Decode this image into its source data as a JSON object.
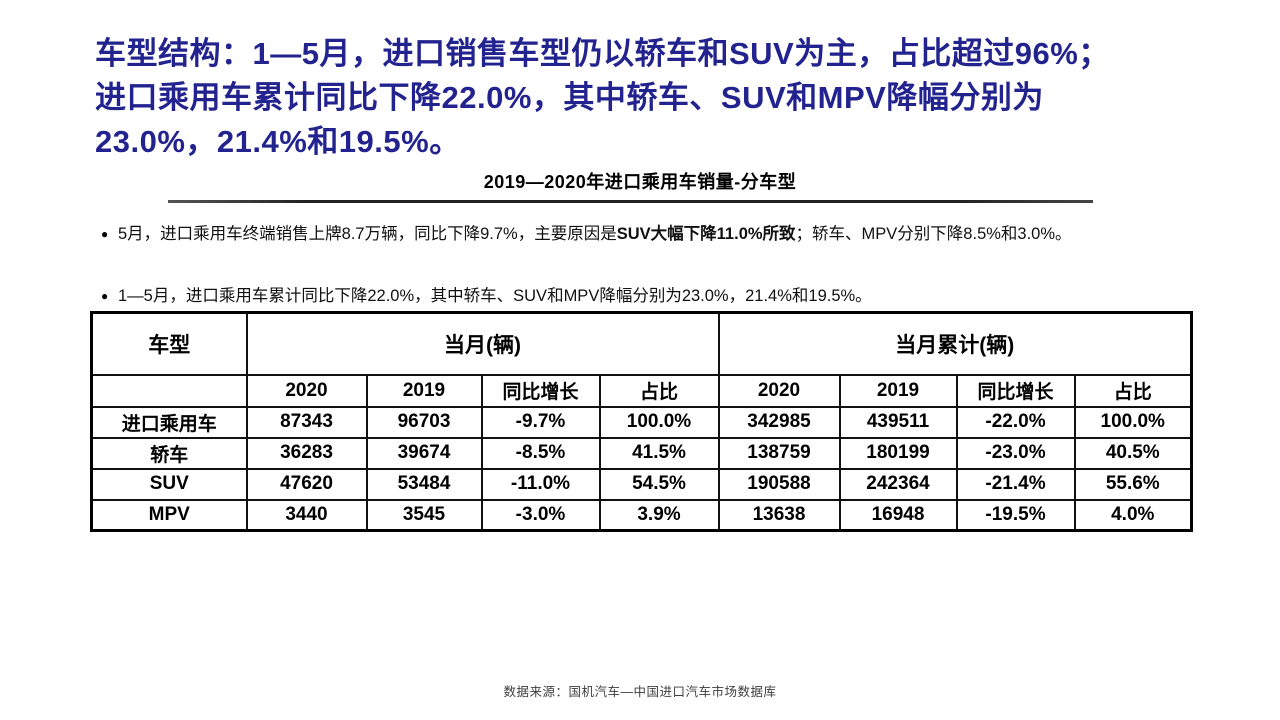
{
  "slide": {
    "title_lines": [
      "车型结构：1—5月，进口销售车型仍以轿车和SUV为主，占比超过96%；",
      "进口乘用车累计同比下降22.0%，其中轿车、SUV和MPV降幅分别为",
      "23.0%，21.4%和19.5%。"
    ],
    "section_title": "2019—2020年进口乘用车销量-分车型",
    "bullets": [
      {
        "segments": [
          {
            "text": "5月，进口乘用车终端销售上牌8.7万辆，同比下降9.7%，主要原因是",
            "bold": false
          },
          {
            "text": "SUV大幅下降11.0%所致",
            "bold": true
          },
          {
            "text": "；轿车、MPV分别下降8.5%和3.0%。",
            "bold": false
          }
        ]
      },
      {
        "segments": [
          {
            "text": "1—5月，进口乘用车累计同比下降22.0%，其中轿车、SUV和MPV降幅分别为23.0%，21.4%和19.5%。",
            "bold": false
          }
        ]
      }
    ],
    "footer": "数据来源：国机汽车—中国进口汽车市场数据库"
  },
  "icons": {
    "bullet": "●"
  },
  "table": {
    "group_headers": {
      "vehicle": "车型",
      "month": "当月(辆)",
      "cumulative": "当月累计(辆)"
    },
    "sub_headers": [
      "2020",
      "2019",
      "同比增长",
      "占比",
      "2020",
      "2019",
      "同比增长",
      "占比"
    ],
    "rows": [
      {
        "label": "进口乘用车",
        "values": [
          "87343",
          "96703",
          "-9.7%",
          "100.0%",
          "342985",
          "439511",
          "-22.0%",
          "100.0%"
        ]
      },
      {
        "label": "轿车",
        "values": [
          "36283",
          "39674",
          "-8.5%",
          "41.5%",
          "138759",
          "180199",
          "-23.0%",
          "40.5%"
        ]
      },
      {
        "label": "SUV",
        "values": [
          "47620",
          "53484",
          "-11.0%",
          "54.5%",
          "190588",
          "242364",
          "-21.4%",
          "55.6%"
        ]
      },
      {
        "label": "MPV",
        "values": [
          "3440",
          "3545",
          "-3.0%",
          "3.9%",
          "13638",
          "16948",
          "-19.5%",
          "4.0%"
        ]
      }
    ]
  },
  "colors": {
    "title_blue": "#23238F",
    "text_black": "#111111",
    "table_border": "#000000",
    "footer_gray": "#3d3d3d"
  }
}
